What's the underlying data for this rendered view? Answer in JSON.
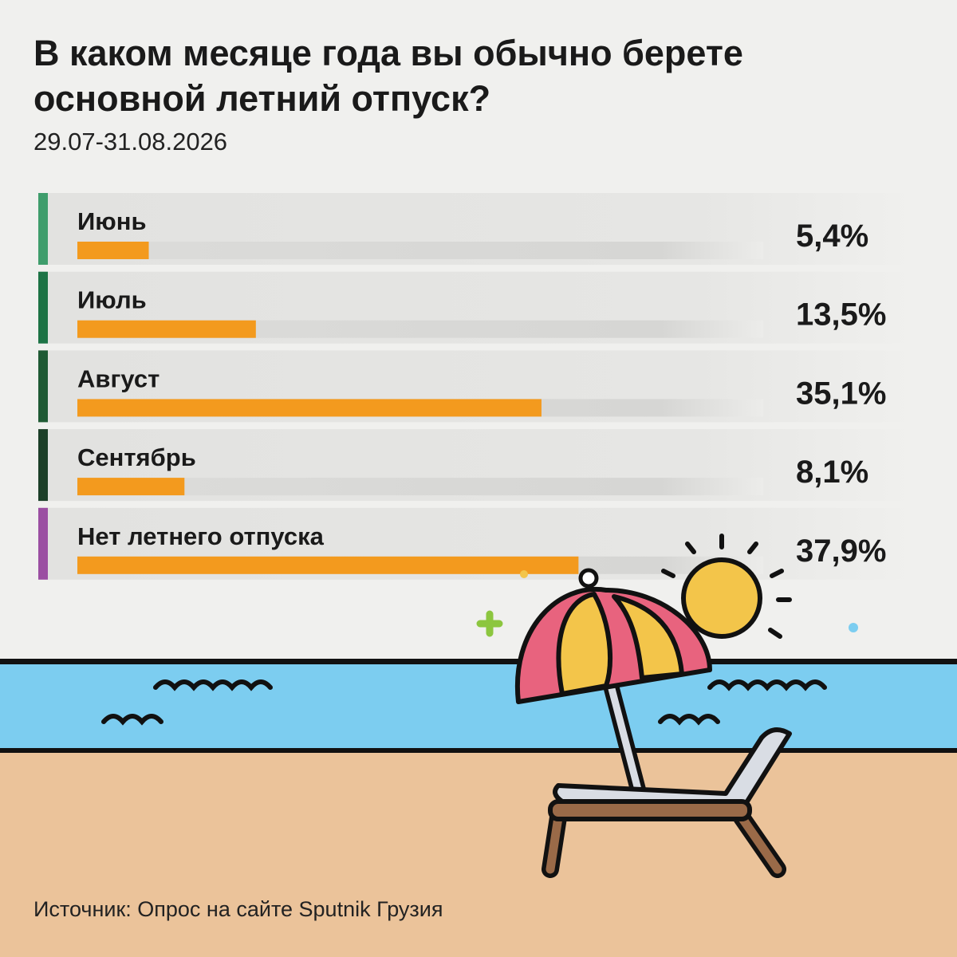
{
  "chart_data": {
    "type": "bar",
    "title": "В каком месяце года вы обычно берете основной летний отпуск?",
    "subtitle": "29.07-31.08.2026",
    "categories": [
      "Июнь",
      "Июль",
      "Август",
      "Сентябрь",
      "Нет летнего отпуска"
    ],
    "values": [
      5.4,
      13.5,
      35.1,
      8.1,
      37.9
    ],
    "value_labels": [
      "5,4%",
      "13,5%",
      "35,1%",
      "8,1%",
      "37,9%"
    ],
    "color": "#f39a1e",
    "category_colors": [
      "#3f9d6c",
      "#1d7345",
      "#1f5a34",
      "#1c3f28",
      "#9b4fa2"
    ],
    "source": "Источник: Опрос на сайте Sputnik Грузия"
  }
}
